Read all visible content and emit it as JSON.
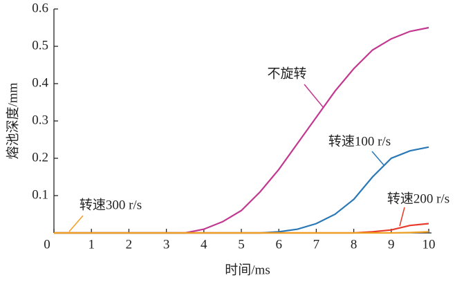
{
  "chart_data": {
    "type": "line",
    "x_label": "时间/ms",
    "y_label": "熔池深度/mm",
    "x": [
      0,
      0.5,
      1,
      1.5,
      2,
      2.5,
      3,
      3.5,
      4,
      4.5,
      5,
      5.5,
      6,
      6.5,
      7,
      7.5,
      8,
      8.5,
      9,
      9.5,
      10
    ],
    "series": [
      {
        "name": "不旋转",
        "color": "#c2378f",
        "values": [
          0,
          0,
          0,
          0,
          0,
          0,
          0,
          0,
          0.01,
          0.03,
          0.06,
          0.11,
          0.17,
          0.24,
          0.31,
          0.38,
          0.44,
          0.49,
          0.52,
          0.54,
          0.55
        ]
      },
      {
        "name": "转速100 r/s",
        "color": "#2878b8",
        "values": [
          0,
          0,
          0,
          0,
          0,
          0,
          0,
          0,
          0,
          0,
          0,
          0,
          0.003,
          0.01,
          0.025,
          0.05,
          0.09,
          0.15,
          0.2,
          0.22,
          0.23
        ]
      },
      {
        "name": "转速200 r/s",
        "color": "#e8392a",
        "values": [
          0,
          0,
          0,
          0,
          0,
          0,
          0,
          0,
          0,
          0,
          0,
          0,
          0,
          0,
          0,
          0,
          0,
          0.003,
          0.008,
          0.02,
          0.025
        ]
      },
      {
        "name": "转速300 r/s",
        "color": "#f0a020",
        "values": [
          0,
          0,
          0,
          0,
          0,
          0,
          0,
          0,
          0,
          0,
          0,
          0,
          0,
          0,
          0,
          0,
          0,
          0,
          0,
          0.001,
          0.003
        ]
      }
    ],
    "xlim": [
      0,
      10
    ],
    "xticks": [
      0,
      1,
      2,
      3,
      4,
      5,
      6,
      7,
      8,
      9,
      10
    ],
    "ylim": [
      0,
      0.6
    ],
    "yticks": [
      0.1,
      0.2,
      0.3,
      0.4,
      0.5,
      0.6
    ],
    "legend": "annotations"
  }
}
